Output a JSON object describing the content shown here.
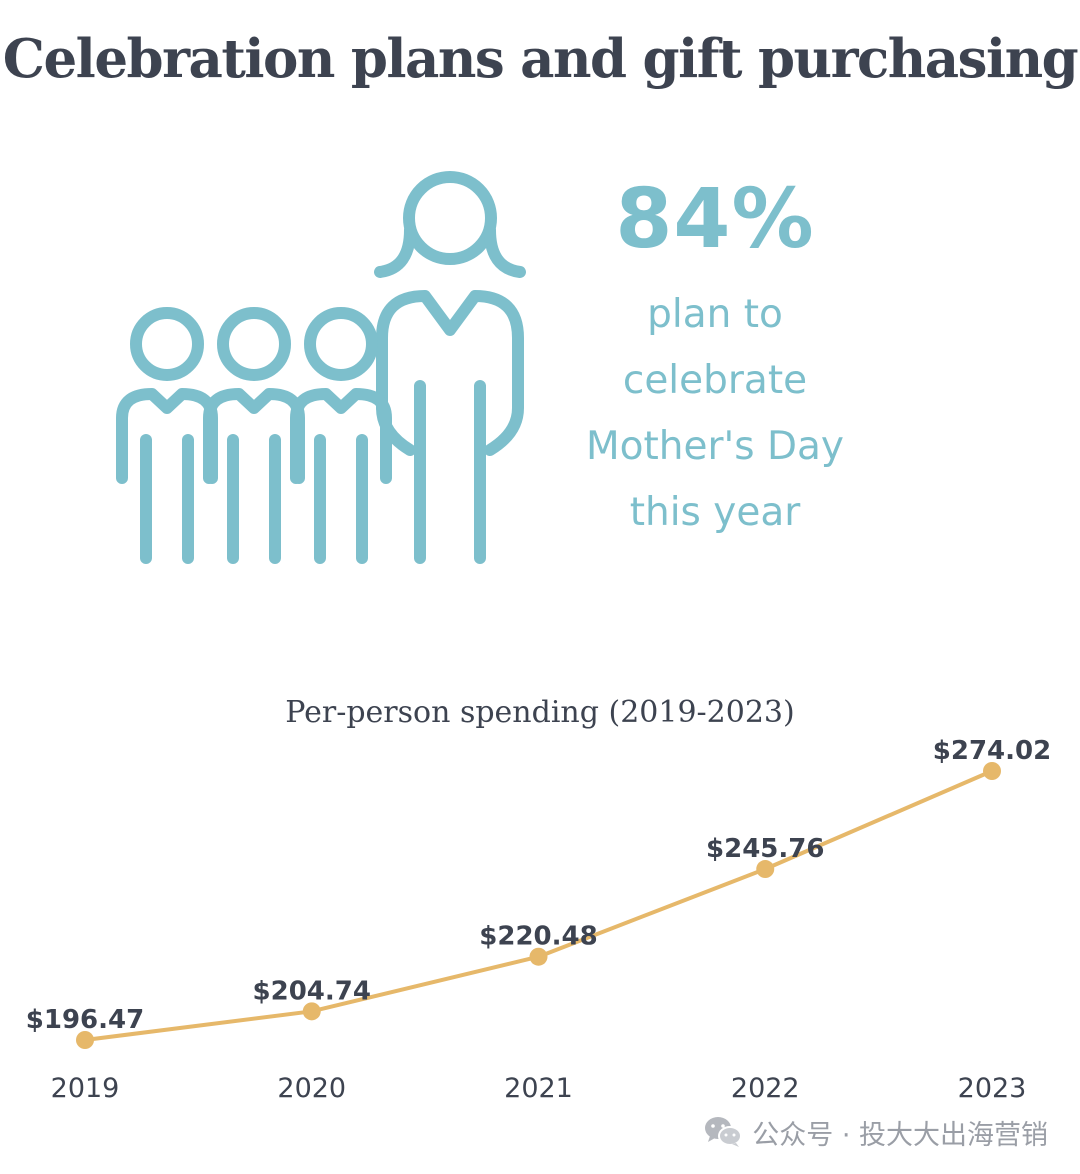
{
  "title": "Celebration plans and gift purchasing",
  "stat": {
    "value": "84%",
    "lines": [
      "plan to",
      "celebrate",
      "Mother's Day",
      "this year"
    ],
    "icon": "family-icon"
  },
  "colors": {
    "title": "#3d4350",
    "accent_teal": "#7dbfcc",
    "line": "#e6b86a",
    "label": "#3d4350"
  },
  "chart_data": {
    "type": "line",
    "title": "Per-person spending (2019-2023)",
    "categories": [
      "2019",
      "2020",
      "2021",
      "2022",
      "2023"
    ],
    "values": [
      196.47,
      204.74,
      220.48,
      245.76,
      274.02
    ],
    "value_labels": [
      "$196.47",
      "$204.74",
      "$220.48",
      "$245.76",
      "$274.02"
    ],
    "xlabel": "",
    "ylabel": "",
    "grid": false
  },
  "watermark": {
    "text": "公众号 · 投大大出海营销",
    "icon": "wechat-icon"
  }
}
